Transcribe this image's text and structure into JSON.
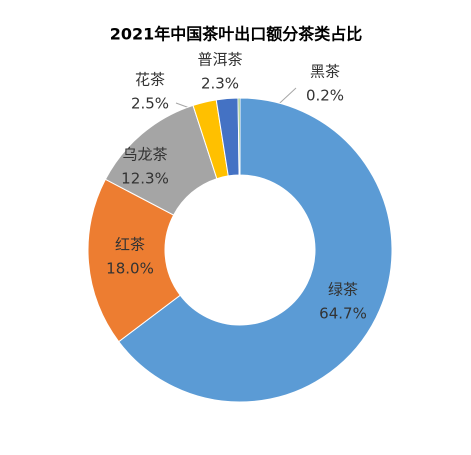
{
  "chart_data": {
    "type": "donut",
    "title": "2021年中国茶叶出口额分茶类占比",
    "categories": [
      "绿茶",
      "红茶",
      "乌龙茶",
      "花茶",
      "普洱茶",
      "黑茶"
    ],
    "values": [
      64.7,
      18.0,
      12.3,
      2.5,
      2.3,
      0.2
    ],
    "value_labels": [
      "64.7%",
      "18.0%",
      "12.3%",
      "2.5%",
      "2.3%",
      "0.2%"
    ],
    "colors": [
      "#5b9bd5",
      "#ed7d31",
      "#a5a5a5",
      "#ffc000",
      "#4472c4",
      "#70ad47"
    ]
  }
}
